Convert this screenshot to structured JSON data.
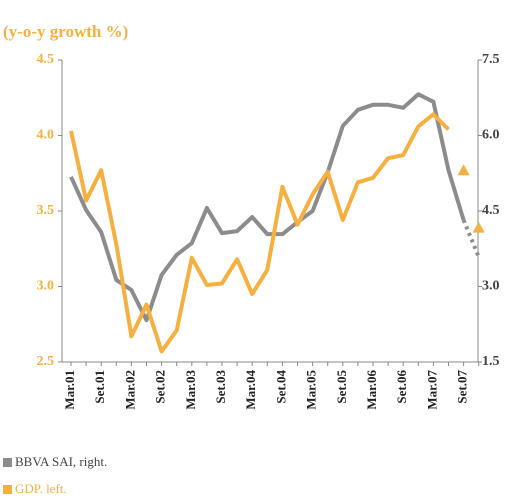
{
  "chart_data": {
    "type": "line",
    "subtitle": "(y-o-y growth %)",
    "categories": [
      "Mar.01",
      null,
      "Set.01",
      null,
      "Mar.02",
      null,
      "Set.02",
      null,
      "Mar.03",
      null,
      "Set.03",
      null,
      "Mar.04",
      null,
      "Set.04",
      null,
      "Mar.05",
      null,
      "Set.05",
      null,
      "Mar.06",
      null,
      "Set.06",
      null,
      "Mar.07",
      null,
      "Set.07",
      null
    ],
    "series": [
      {
        "name": "BBVA SAI, right.",
        "color": "#8c8c8c",
        "axis": "y2",
        "values": [
          5.18,
          4.52,
          4.08,
          3.13,
          2.93,
          2.33,
          3.23,
          3.63,
          3.86,
          4.56,
          4.06,
          4.1,
          4.38,
          4.04,
          4.04,
          4.28,
          4.5,
          5.27,
          6.19,
          6.51,
          6.61,
          6.61,
          6.55,
          6.82,
          6.67,
          5.31,
          4.32,
          null
        ],
        "forecast_values": [
          null,
          null,
          null,
          null,
          null,
          null,
          null,
          null,
          null,
          null,
          null,
          null,
          null,
          null,
          null,
          null,
          null,
          null,
          null,
          null,
          null,
          null,
          null,
          null,
          null,
          null,
          null,
          3.59
        ]
      },
      {
        "name": "GDP. left.",
        "color": "#f6b040",
        "values": [
          4.03,
          3.57,
          3.77,
          3.28,
          2.67,
          2.88,
          2.57,
          2.71,
          3.19,
          3.01,
          3.02,
          3.18,
          2.95,
          3.11,
          3.66,
          3.41,
          3.61,
          3.76,
          3.44,
          3.69,
          3.72,
          3.85,
          3.87,
          4.06,
          4.14,
          4.04,
          null,
          null
        ],
        "forecast_values": [
          null,
          null,
          null,
          null,
          null,
          null,
          null,
          null,
          null,
          null,
          null,
          null,
          null,
          null,
          null,
          null,
          null,
          null,
          null,
          null,
          null,
          null,
          null,
          null,
          null,
          null,
          3.77,
          3.39
        ]
      }
    ],
    "ylim": [
      2.5,
      4.5
    ],
    "yticks": [
      2.5,
      {
        "value": 3,
        "label": "3.0"
      },
      3.5,
      {
        "value": 4,
        "label": "4.0"
      },
      4.5
    ],
    "y2lim": [
      1.5,
      7.5
    ],
    "y2ticks": [
      1.5,
      {
        "value": 3,
        "label": "3.0"
      },
      4.5,
      {
        "value": 6,
        "label": "6.0"
      },
      7.5
    ],
    "grid": false
  }
}
